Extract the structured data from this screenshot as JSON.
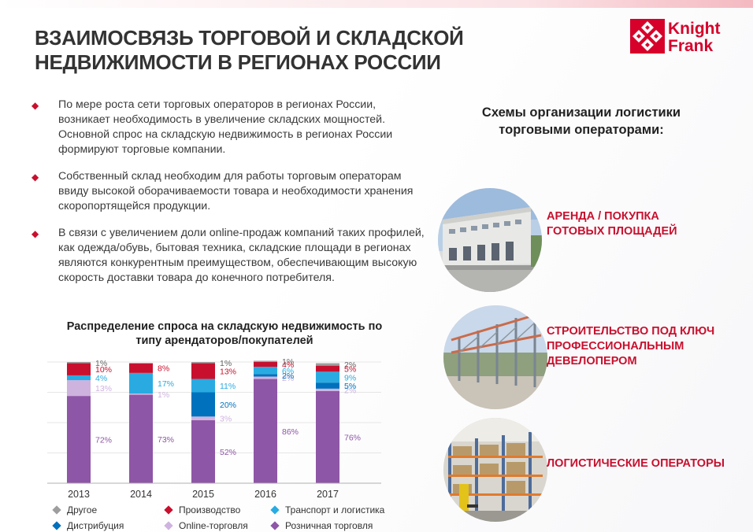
{
  "header": {
    "title_line1": "ВЗАИМОСВЯЗЬ ТОРГОВОЙ И СКЛАДСКОЙ",
    "title_line2": "НЕДВИЖИМОСТИ В РЕГИОНАХ РОССИИ",
    "logo_line1": "Knight",
    "logo_line2": "Frank"
  },
  "bullets": [
    "По мере роста сети торговых операторов в регионах России, возникает необходимость в увеличение складских мощностей. Основной спрос на складскую недвижимость в регионах России формируют торговые компании.",
    "Собственный склад необходим для работы торговым операторам ввиду высокой оборачиваемости товара и необходимости хранения скоропортящейся продукции.",
    "В связи с увеличением доли online-продаж компаний таких профилей, как одежда/обувь, бытовая техника, складские площади в регионах являются конкурентным преимуществом, обеспечивающим высокую скорость доставки товара до конечного потребителя."
  ],
  "right": {
    "heading_line1": "Схемы организации логистики",
    "heading_line2": "торговыми операторами:",
    "schemes": [
      {
        "lines": [
          "АРЕНДА / ПОКУПКА",
          "ГОТОВЫХ ПЛОЩАДЕЙ"
        ]
      },
      {
        "lines": [
          "СТРОИТЕЛЬСТВО ПОД КЛЮЧ",
          "ПРОФЕССИОНАЛЬНЫМ",
          "ДЕВЕЛОПЕРОМ"
        ]
      },
      {
        "lines": [
          "ЛОГИСТИЧЕСКИЕ  ОПЕРАТОРЫ"
        ]
      }
    ]
  },
  "colors": {
    "accent": "#c8102e",
    "other": "#9e9e9e",
    "production": "#c8102e",
    "transport": "#29abe2",
    "distribution": "#0071bc",
    "online": "#cfb3df",
    "retail": "#8e56a6"
  },
  "chart_data": {
    "type": "bar",
    "stacked": true,
    "percent": true,
    "title_line1": "Распределение спроса на складскую недвижимость по",
    "title_line2": "типу арендаторов/покупателей",
    "categories": [
      "2013",
      "2014",
      "2015",
      "2016",
      "2017"
    ],
    "ylim": [
      0,
      100
    ],
    "legend_position": "bottom",
    "series": [
      {
        "name": "Розничная торговля",
        "color": "#8e56a6",
        "values": [
          72,
          73,
          52,
          86,
          76
        ],
        "labels": [
          "72%",
          "73%",
          "52%",
          "86%",
          "76%"
        ]
      },
      {
        "name": "Online-торговля",
        "color": "#cfb3df",
        "values": [
          13,
          1,
          3,
          2,
          2
        ],
        "labels": [
          "13%",
          "1%",
          "3%",
          "2%",
          "2%"
        ]
      },
      {
        "name": "Дистрибуция",
        "color": "#0071bc",
        "values": [
          0,
          0,
          20,
          2,
          5
        ],
        "labels": [
          "",
          "",
          "20%",
          "2%",
          "5%"
        ]
      },
      {
        "name": "Транспорт и логистика",
        "color": "#29abe2",
        "values": [
          4,
          17,
          11,
          6,
          9
        ],
        "labels": [
          "4%",
          "17%",
          "11%",
          "6%",
          "9%"
        ]
      },
      {
        "name": "Производство",
        "color": "#c8102e",
        "values": [
          10,
          8,
          13,
          4,
          5
        ],
        "labels": [
          "10%",
          "8%",
          "13%",
          "4%",
          "5%"
        ]
      },
      {
        "name": "Другое",
        "color": "#9e9e9e",
        "values": [
          1,
          0,
          1,
          1,
          2
        ],
        "labels": [
          "1%",
          "",
          "1%",
          "1%",
          "2%"
        ]
      }
    ],
    "legend_order": [
      "Другое",
      "Производство",
      "Транспорт и логистика",
      "Дистрибуция",
      "Online-торговля",
      "Розничная торговля"
    ]
  }
}
